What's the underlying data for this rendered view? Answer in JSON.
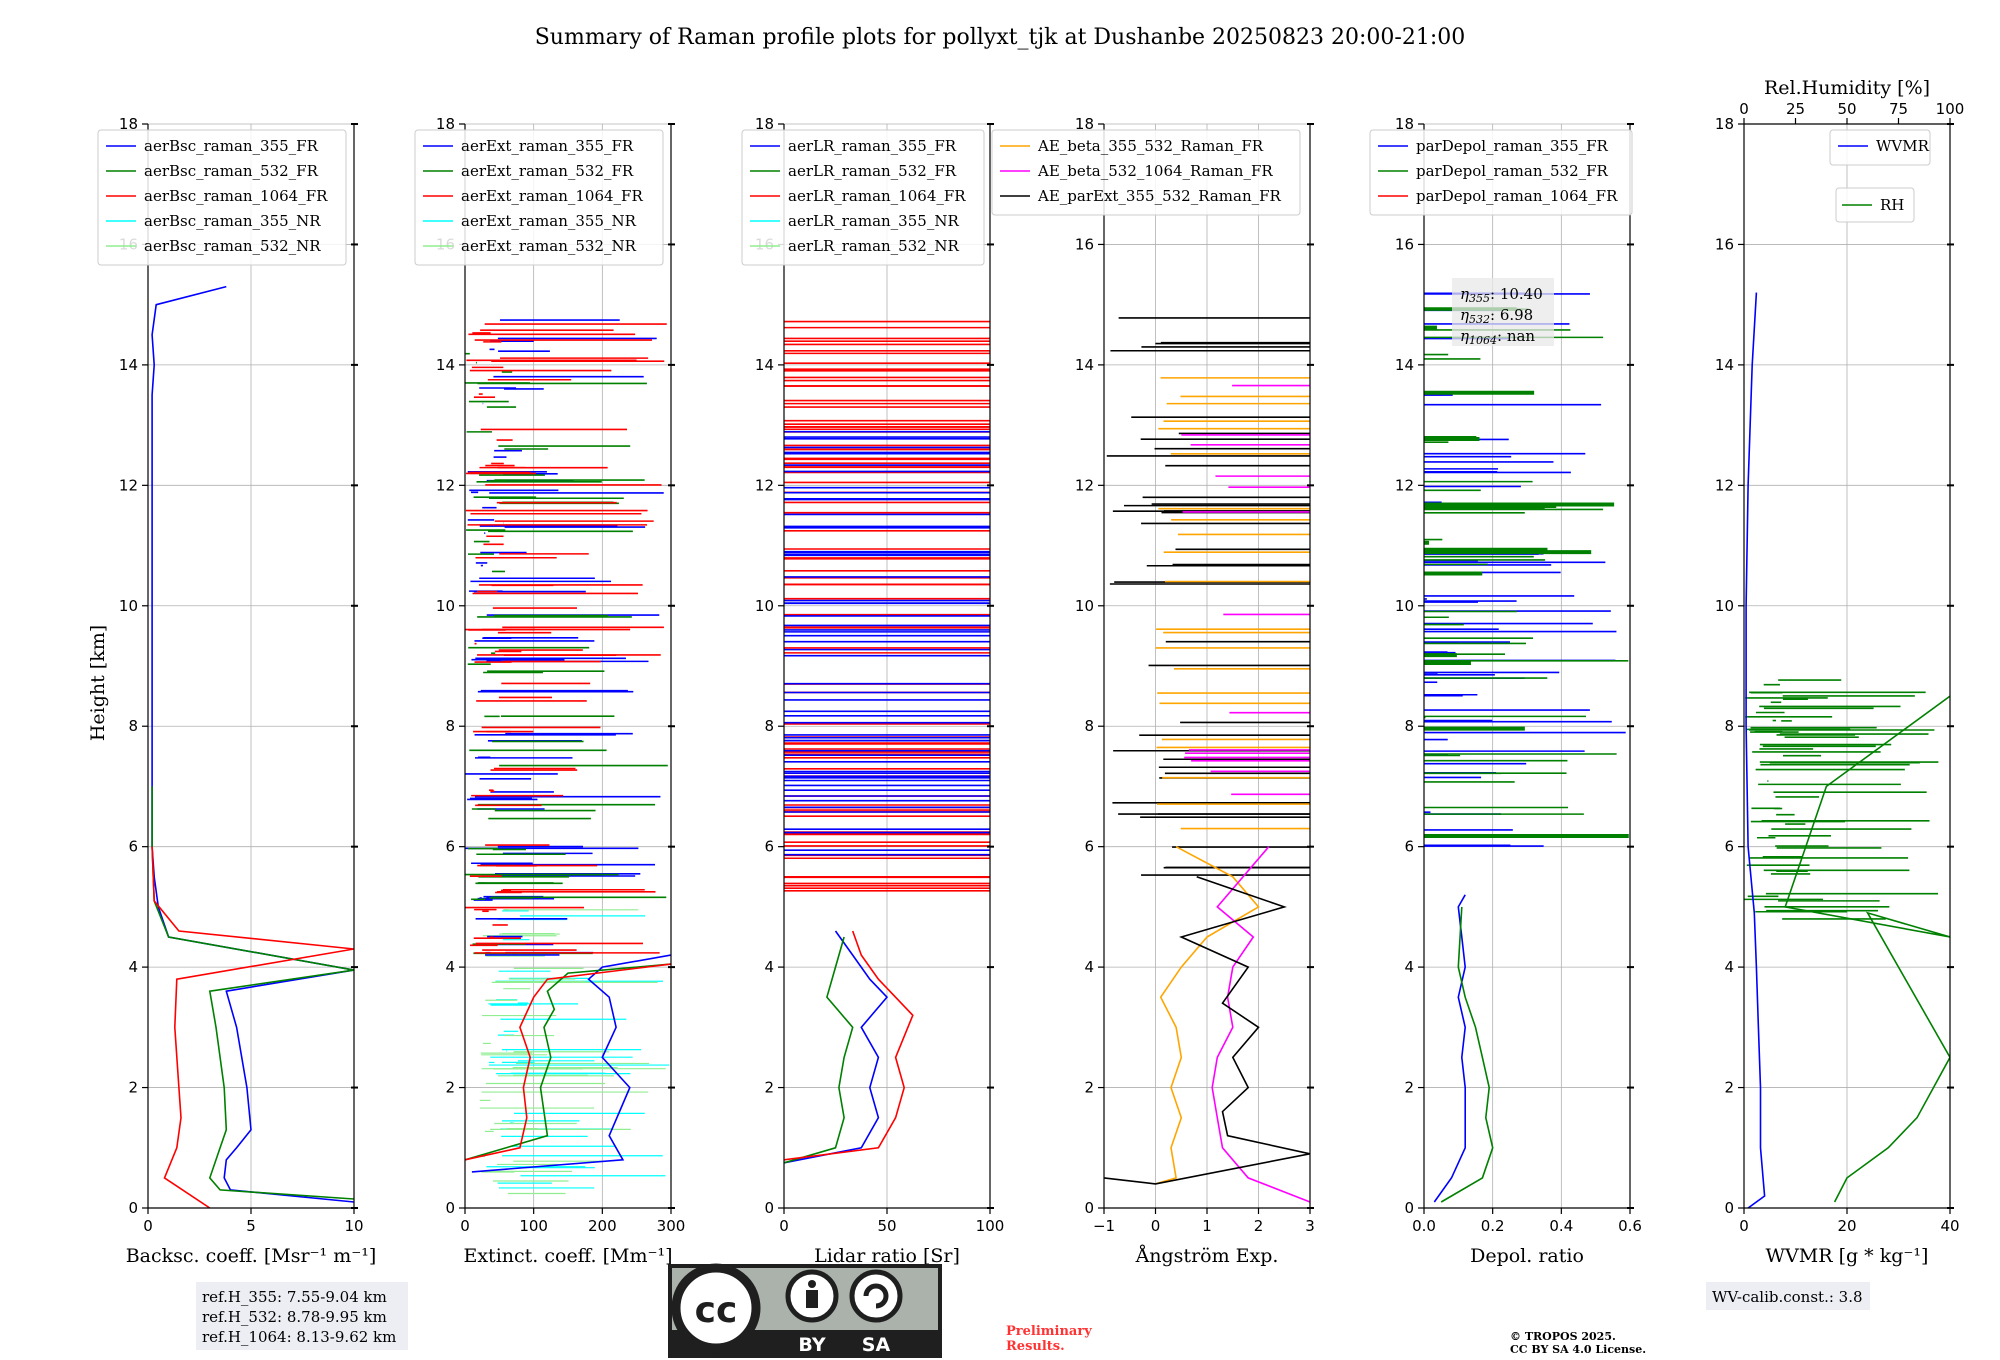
{
  "title": "Summary of Raman profile plots for pollyxt_tjk at Dushanbe 20250823 20:00-21:00",
  "ylabel": "Height [km]",
  "y_ticks": [
    "0",
    "2",
    "4",
    "6",
    "8",
    "10",
    "12",
    "14",
    "16",
    "18"
  ],
  "panels": [
    {
      "id": "bsc",
      "xlabel": "Backsc. coeff. [Msr⁻¹ m⁻¹]",
      "xlim": [
        0,
        10
      ],
      "xticks": [
        "0",
        "5",
        "10"
      ],
      "legend": [
        "aerBsc_raman_355_FR",
        "aerBsc_raman_532_FR",
        "aerBsc_raman_1064_FR",
        "aerBsc_raman_355_NR",
        "aerBsc_raman_532_NR"
      ]
    },
    {
      "id": "ext",
      "xlabel": "Extinct. coeff. [Mm⁻¹]",
      "xlim": [
        0,
        300
      ],
      "xticks": [
        "0",
        "100",
        "200",
        "300"
      ],
      "legend": [
        "aerExt_raman_355_FR",
        "aerExt_raman_532_FR",
        "aerExt_raman_1064_FR",
        "aerExt_raman_355_NR",
        "aerExt_raman_532_NR"
      ]
    },
    {
      "id": "lr",
      "xlabel": "Lidar ratio [Sr]",
      "xlim": [
        0,
        120
      ],
      "xticks": [
        "0",
        "50",
        "100"
      ],
      "legend": [
        "aerLR_raman_355_FR",
        "aerLR_raman_532_FR",
        "aerLR_raman_1064_FR",
        "aerLR_raman_355_NR",
        "aerLR_raman_532_NR"
      ]
    },
    {
      "id": "ae",
      "xlabel": "Ångström Exp.",
      "xlim": [
        -1,
        3
      ],
      "xticks": [
        "−1",
        "0",
        "1",
        "2",
        "3"
      ],
      "legend": [
        "AE_beta_355_532_Raman_FR",
        "AE_beta_532_1064_Raman_FR",
        "AE_parExt_355_532_Raman_FR"
      ]
    },
    {
      "id": "dep",
      "xlabel": "Depol. ratio",
      "xlim": [
        0,
        0.6
      ],
      "xticks": [
        "0.0",
        "0.2",
        "0.4",
        "0.6"
      ],
      "legend": [
        "parDepol_raman_355_FR",
        "parDepol_raman_532_FR",
        "parDepol_raman_1064_FR"
      ]
    },
    {
      "id": "wv",
      "xlabel": "WVMR [g * kg⁻¹]",
      "xlim": [
        0,
        50
      ],
      "xticks": [
        "0",
        "20",
        "40"
      ],
      "legend": [
        "WVMR"
      ],
      "top_xlabel": "Rel.Humidity [%]",
      "top_xticks": [
        "0",
        "25",
        "50",
        "75",
        "100"
      ],
      "legend2": [
        "RH"
      ]
    }
  ],
  "colors": {
    "355_FR": "#0000ff",
    "532_FR": "#008000",
    "1064_FR": "#ff0000",
    "355_NR": "#00ffff",
    "532_NR": "#90ee90",
    "ae1": "#ffa500",
    "ae2": "#ff00ff",
    "ae3": "#000000",
    "wvmr": "#0000ff",
    "rh": "#008000"
  },
  "eta": {
    "l355": "10.40",
    "l532": "6.98",
    "l1064": "nan"
  },
  "ref_heights": [
    "ref.H_355: 7.55-9.04 km",
    "ref.H_532: 8.78-9.95 km",
    "ref.H_1064: 8.13-9.62 km"
  ],
  "wv_calib": "WV-calib.const.: 3.8",
  "preliminary": [
    "Preliminary",
    "Results."
  ],
  "copyright": [
    "© TROPOS 2025.",
    "CC BY SA 4.0 License."
  ],
  "license_badge": [
    "cc",
    "BY",
    "SA"
  ],
  "chart_data": [
    {
      "type": "line",
      "title": "",
      "xlabel": "Backsc. coeff. [Msr-1 m-1]",
      "ylabel": "Height [km]",
      "xlim": [
        0,
        10
      ],
      "ylim": [
        0,
        18
      ],
      "grid": true,
      "legend": "top-left",
      "series": [
        {
          "name": "aerBsc_raman_355_FR",
          "x": [
            10,
            4,
            3.7,
            3.8,
            4.3,
            5.0,
            4.8,
            4.3,
            3.8,
            10,
            1.0,
            0.5,
            0.3,
            0.2,
            0.2,
            0.2,
            0.2,
            0.2,
            0.2,
            0.2,
            0.2,
            0.2,
            0.2,
            0.3,
            0.2,
            0.4,
            3.8
          ],
          "y": [
            0.1,
            0.3,
            0.5,
            0.8,
            1.0,
            1.3,
            2.0,
            3.0,
            3.6,
            3.95,
            4.5,
            5.0,
            5.5,
            6.0,
            7.0,
            8.0,
            9.0,
            10.0,
            11.0,
            11.5,
            12.0,
            13.0,
            13.5,
            14.0,
            14.5,
            15.0,
            15.3
          ]
        },
        {
          "name": "aerBsc_raman_532_FR",
          "x": [
            10,
            3.5,
            3.0,
            3.5,
            3.8,
            3.7,
            3.3,
            3.0,
            10,
            1.0,
            0.3,
            0.2,
            0.2
          ],
          "y": [
            0.15,
            0.3,
            0.5,
            1.0,
            1.3,
            2.0,
            3.0,
            3.6,
            3.95,
            4.5,
            5.1,
            6.0,
            7.0
          ]
        },
        {
          "name": "aerBsc_raman_1064_FR",
          "x": [
            3.0,
            0.8,
            1.4,
            1.6,
            1.5,
            1.3,
            1.4,
            10,
            1.5,
            0.3,
            0.2
          ],
          "y": [
            0.0,
            0.5,
            1.0,
            1.5,
            2.0,
            3.0,
            3.8,
            4.3,
            4.6,
            5.1,
            6.0
          ]
        }
      ]
    },
    {
      "type": "line",
      "title": "",
      "xlabel": "Extinct. coeff. [Mm-1]",
      "ylabel": "Height [km]",
      "xlim": [
        0,
        300
      ],
      "ylim": [
        0,
        18
      ],
      "grid": true,
      "legend": "top-left",
      "series": [
        {
          "name": "aerExt_raman_355_FR",
          "x": [
            10,
            230,
            210,
            240,
            200,
            220,
            210,
            180,
            200,
            300
          ],
          "y": [
            0.6,
            0.8,
            1.2,
            2.0,
            2.5,
            3.0,
            3.5,
            3.8,
            4.0,
            4.2
          ]
        },
        {
          "name": "aerExt_raman_532_FR",
          "x": [
            0,
            120,
            110,
            125,
            115,
            130,
            120,
            150,
            300
          ],
          "y": [
            0.8,
            1.2,
            2.0,
            2.5,
            3.0,
            3.3,
            3.6,
            3.9,
            4.05
          ]
        },
        {
          "name": "aerExt_raman_1064_FR",
          "x": [
            0,
            80,
            90,
            85,
            95,
            80,
            100,
            120,
            300
          ],
          "y": [
            0.8,
            1.0,
            1.5,
            2.0,
            2.5,
            3.0,
            3.5,
            3.8,
            4.05
          ]
        }
      ]
    },
    {
      "type": "line",
      "title": "",
      "xlabel": "Lidar ratio [Sr]",
      "ylabel": "Height [km]",
      "xlim": [
        0,
        120
      ],
      "ylim": [
        0,
        18
      ],
      "grid": true,
      "legend": "top-left",
      "series": [
        {
          "name": "aerLR_raman_355_FR",
          "x": [
            0,
            45,
            55,
            50,
            55,
            45,
            60,
            50,
            40,
            30
          ],
          "y": [
            0.75,
            1.0,
            1.5,
            2.0,
            2.5,
            3.0,
            3.5,
            3.8,
            4.2,
            4.6
          ]
        },
        {
          "name": "aerLR_raman_532_FR",
          "x": [
            0,
            30,
            35,
            32,
            35,
            40,
            25,
            30,
            35
          ],
          "y": [
            0.75,
            1.0,
            1.5,
            2.0,
            2.5,
            3.0,
            3.5,
            4.0,
            4.5
          ]
        },
        {
          "name": "aerLR_raman_1064_FR",
          "x": [
            0,
            55,
            65,
            70,
            65,
            75,
            55,
            45,
            40
          ],
          "y": [
            0.8,
            1.0,
            1.5,
            2.0,
            2.5,
            3.2,
            3.8,
            4.2,
            4.6
          ]
        }
      ]
    },
    {
      "type": "line",
      "title": "",
      "xlabel": "Angstrom Exp.",
      "ylabel": "Height [km]",
      "xlim": [
        -1,
        3
      ],
      "ylim": [
        0,
        18
      ],
      "grid": true,
      "legend": "top-right",
      "series": [
        {
          "name": "AE_beta_355_532_Raman_FR",
          "x": [
            0,
            0.4,
            0.3,
            0.5,
            0.3,
            0.5,
            0.4,
            0.1,
            0.5,
            1.0,
            2.0,
            1.5,
            0.4
          ],
          "y": [
            0.4,
            0.5,
            1.0,
            1.5,
            2.0,
            2.5,
            3.0,
            3.5,
            4.0,
            4.5,
            5.0,
            5.5,
            6.0
          ]
        },
        {
          "name": "AE_beta_532_1064_Raman_FR",
          "x": [
            3,
            1.8,
            1.3,
            1.2,
            1.1,
            1.2,
            1.5,
            1.4,
            1.5,
            1.9,
            1.2,
            2.2
          ],
          "y": [
            0.1,
            0.5,
            1.0,
            1.5,
            2.0,
            2.5,
            3.0,
            3.5,
            4.0,
            4.5,
            5.0,
            6.0
          ]
        },
        {
          "name": "AE_parExt_355_532_Raman_FR",
          "x": [
            -1,
            0,
            3,
            1.4,
            1.3,
            1.8,
            1.5,
            2.0,
            1.3,
            1.8,
            0.5,
            2.5,
            0.8
          ],
          "y": [
            0.5,
            0.4,
            0.9,
            1.2,
            1.6,
            2.0,
            2.5,
            3.0,
            3.4,
            4.0,
            4.5,
            5.0,
            5.5
          ]
        }
      ]
    },
    {
      "type": "line",
      "title": "",
      "xlabel": "Depol. ratio",
      "ylabel": "Height [km]",
      "xlim": [
        0,
        0.6
      ],
      "ylim": [
        0,
        18
      ],
      "grid": true,
      "legend": "top-left",
      "series": [
        {
          "name": "parDepol_raman_355_FR",
          "x": [
            0.03,
            0.08,
            0.12,
            0.12,
            0.11,
            0.12,
            0.1,
            0.12,
            0.11,
            0.1,
            0.12
          ],
          "y": [
            0.1,
            0.5,
            1.0,
            2.0,
            2.5,
            3.0,
            3.5,
            4.0,
            4.5,
            5.0,
            5.2
          ]
        },
        {
          "name": "parDepol_raman_532_FR",
          "x": [
            0.05,
            0.17,
            0.2,
            0.18,
            0.19,
            0.17,
            0.15,
            0.12,
            0.1,
            0.11
          ],
          "y": [
            0.1,
            0.5,
            1.0,
            1.5,
            2.0,
            2.5,
            3.0,
            3.5,
            4.0,
            5.0
          ]
        }
      ]
    },
    {
      "type": "line",
      "title": "",
      "xlabel": "WVMR [g*kg-1]",
      "ylabel": "Height [km]",
      "xlim": [
        0,
        50
      ],
      "ylim": [
        0,
        18
      ],
      "grid": true,
      "legend": "top-right",
      "series": [
        {
          "name": "WVMR",
          "x": [
            1,
            5,
            4,
            4,
            3.5,
            3,
            2.5,
            1,
            0.5,
            0.5,
            1,
            2,
            3
          ],
          "y": [
            0,
            0.2,
            1.0,
            2.0,
            3.0,
            4.0,
            4.9,
            6.0,
            8.0,
            10.0,
            12.0,
            14.0,
            15.2
          ]
        },
        {
          "name": "RH",
          "x": [
            22,
            25,
            35,
            42,
            50,
            30,
            50,
            10,
            20,
            50
          ],
          "y": [
            0.1,
            0.5,
            1.0,
            1.5,
            2.5,
            4.9,
            4.5,
            5.0,
            7.0,
            8.5
          ]
        }
      ]
    }
  ]
}
